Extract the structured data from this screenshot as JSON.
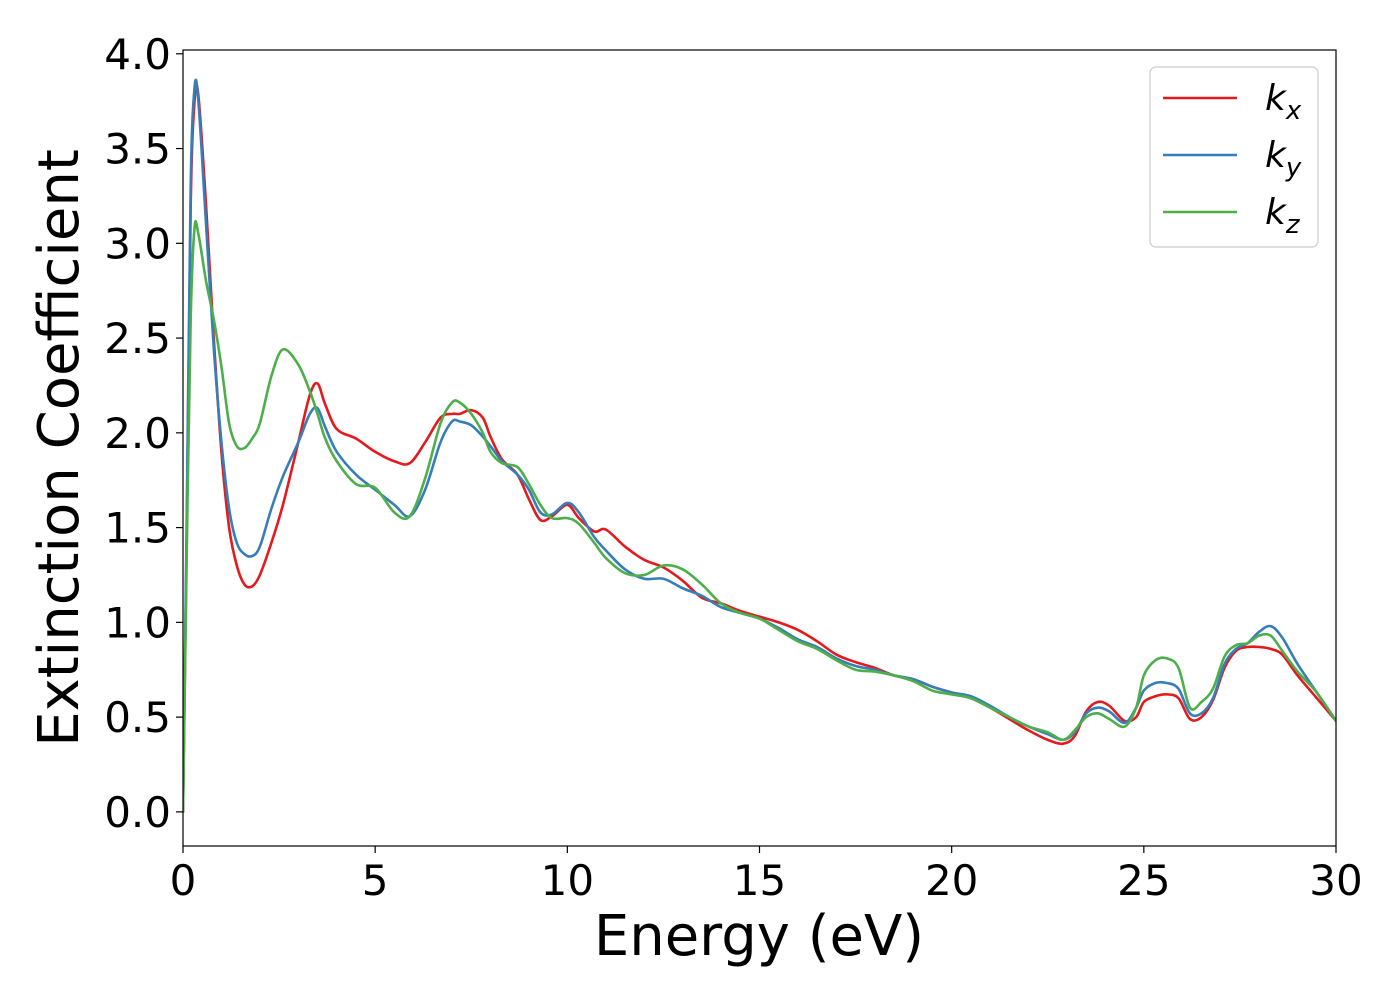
{
  "chart_data": {
    "type": "line",
    "xlabel": "Energy (eV)",
    "ylabel": "Extinction Coefficient",
    "xlim": [
      0,
      30
    ],
    "ylim": [
      -0.18,
      4.02
    ],
    "xticks": [
      0,
      5,
      10,
      15,
      20,
      25,
      30
    ],
    "xtick_labels": [
      "0",
      "5",
      "10",
      "15",
      "20",
      "25",
      "30"
    ],
    "yticks": [
      0.0,
      0.5,
      1.0,
      1.5,
      2.0,
      2.5,
      3.0,
      3.5,
      4.0
    ],
    "ytick_labels": [
      "0.0",
      "0.5",
      "1.0",
      "1.5",
      "2.0",
      "2.5",
      "3.0",
      "3.5",
      "4.0"
    ],
    "grid": false,
    "legend_position": "top-right",
    "series": [
      {
        "name": "k",
        "subscript": "x",
        "color": "#e41a1c",
        "x": [
          0.0,
          0.1,
          0.2,
          0.3,
          0.4,
          0.6,
          0.8,
          1.0,
          1.2,
          1.4,
          1.6,
          1.8,
          2.0,
          2.3,
          2.6,
          3.0,
          3.3,
          3.5,
          3.7,
          4.0,
          4.5,
          5.0,
          5.5,
          5.9,
          6.3,
          6.7,
          7.0,
          7.2,
          7.5,
          7.8,
          8.0,
          8.3,
          8.7,
          9.0,
          9.3,
          9.6,
          10.0,
          10.3,
          10.7,
          11.0,
          11.5,
          12.0,
          12.5,
          13.0,
          13.5,
          14.0,
          14.5,
          15.0,
          15.5,
          16.0,
          16.5,
          17.0,
          17.5,
          18.0,
          18.5,
          19.0,
          19.5,
          20.0,
          20.5,
          21.0,
          21.5,
          22.0,
          22.5,
          22.9,
          23.2,
          23.5,
          23.8,
          24.1,
          24.5,
          24.8,
          25.0,
          25.3,
          25.6,
          25.9,
          26.2,
          26.5,
          26.8,
          27.1,
          27.4,
          27.7,
          28.0,
          28.3,
          28.6,
          29.0,
          29.5,
          30.0
        ],
        "y": [
          0.0,
          1.5,
          3.2,
          3.75,
          3.78,
          3.2,
          2.5,
          1.9,
          1.5,
          1.3,
          1.2,
          1.19,
          1.25,
          1.42,
          1.62,
          1.95,
          2.2,
          2.26,
          2.15,
          2.02,
          1.97,
          1.9,
          1.85,
          1.84,
          1.95,
          2.08,
          2.1,
          2.1,
          2.12,
          2.08,
          1.98,
          1.86,
          1.78,
          1.65,
          1.54,
          1.56,
          1.62,
          1.55,
          1.48,
          1.49,
          1.4,
          1.33,
          1.29,
          1.22,
          1.13,
          1.1,
          1.06,
          1.03,
          1.0,
          0.96,
          0.9,
          0.83,
          0.79,
          0.76,
          0.72,
          0.7,
          0.66,
          0.63,
          0.6,
          0.55,
          0.49,
          0.43,
          0.38,
          0.36,
          0.4,
          0.53,
          0.58,
          0.56,
          0.48,
          0.5,
          0.58,
          0.61,
          0.62,
          0.6,
          0.49,
          0.5,
          0.59,
          0.76,
          0.85,
          0.87,
          0.87,
          0.86,
          0.83,
          0.72,
          0.6,
          0.48
        ]
      },
      {
        "name": "k",
        "subscript": "y",
        "color": "#377eb8",
        "x": [
          0.0,
          0.1,
          0.2,
          0.3,
          0.4,
          0.6,
          0.8,
          1.0,
          1.2,
          1.4,
          1.6,
          1.8,
          2.0,
          2.3,
          2.6,
          3.0,
          3.3,
          3.5,
          3.7,
          4.0,
          4.5,
          5.0,
          5.5,
          5.9,
          6.3,
          6.7,
          7.0,
          7.2,
          7.5,
          7.8,
          8.0,
          8.3,
          8.7,
          9.0,
          9.3,
          9.6,
          10.0,
          10.3,
          10.7,
          11.0,
          11.5,
          12.0,
          12.5,
          13.0,
          13.5,
          14.0,
          14.5,
          15.0,
          15.5,
          16.0,
          16.5,
          17.0,
          17.5,
          18.0,
          18.5,
          19.0,
          19.5,
          20.0,
          20.5,
          21.0,
          21.5,
          22.0,
          22.5,
          22.9,
          23.2,
          23.5,
          23.8,
          24.1,
          24.5,
          24.8,
          25.0,
          25.3,
          25.6,
          25.9,
          26.2,
          26.5,
          26.8,
          27.1,
          27.4,
          27.7,
          28.0,
          28.3,
          28.6,
          29.0,
          29.5,
          30.0
        ],
        "y": [
          0.0,
          1.6,
          3.3,
          3.82,
          3.75,
          3.1,
          2.45,
          1.95,
          1.6,
          1.42,
          1.36,
          1.35,
          1.4,
          1.6,
          1.77,
          1.95,
          2.1,
          2.13,
          2.03,
          1.9,
          1.78,
          1.7,
          1.62,
          1.56,
          1.7,
          1.95,
          2.06,
          2.06,
          2.04,
          1.98,
          1.93,
          1.85,
          1.78,
          1.7,
          1.58,
          1.57,
          1.63,
          1.58,
          1.45,
          1.38,
          1.28,
          1.23,
          1.23,
          1.18,
          1.14,
          1.08,
          1.05,
          1.02,
          0.97,
          0.91,
          0.87,
          0.81,
          0.77,
          0.75,
          0.72,
          0.7,
          0.66,
          0.63,
          0.61,
          0.56,
          0.5,
          0.45,
          0.41,
          0.38,
          0.42,
          0.52,
          0.55,
          0.53,
          0.47,
          0.55,
          0.64,
          0.68,
          0.68,
          0.65,
          0.52,
          0.52,
          0.6,
          0.78,
          0.86,
          0.89,
          0.95,
          0.98,
          0.92,
          0.78,
          0.63,
          0.48
        ]
      },
      {
        "name": "k",
        "subscript": "z",
        "color": "#4daf4a",
        "x": [
          0.0,
          0.1,
          0.2,
          0.3,
          0.4,
          0.6,
          0.8,
          1.0,
          1.2,
          1.4,
          1.6,
          1.8,
          2.0,
          2.3,
          2.6,
          3.0,
          3.3,
          3.5,
          3.7,
          4.0,
          4.5,
          5.0,
          5.5,
          5.9,
          6.3,
          6.7,
          7.0,
          7.2,
          7.5,
          7.8,
          8.0,
          8.3,
          8.7,
          9.0,
          9.3,
          9.6,
          10.0,
          10.3,
          10.7,
          11.0,
          11.5,
          12.0,
          12.5,
          13.0,
          13.5,
          14.0,
          14.5,
          15.0,
          15.5,
          16.0,
          16.5,
          17.0,
          17.5,
          18.0,
          18.5,
          19.0,
          19.5,
          20.0,
          20.5,
          21.0,
          21.5,
          22.0,
          22.5,
          22.9,
          23.2,
          23.5,
          23.8,
          24.1,
          24.5,
          24.8,
          25.0,
          25.3,
          25.6,
          25.9,
          26.2,
          26.5,
          26.8,
          27.1,
          27.4,
          27.7,
          28.0,
          28.3,
          28.6,
          29.0,
          29.5,
          30.0
        ],
        "y": [
          0.0,
          1.4,
          2.6,
          3.08,
          3.05,
          2.8,
          2.6,
          2.35,
          2.05,
          1.93,
          1.92,
          1.97,
          2.05,
          2.3,
          2.44,
          2.36,
          2.22,
          2.1,
          1.97,
          1.85,
          1.73,
          1.71,
          1.58,
          1.56,
          1.76,
          2.05,
          2.16,
          2.16,
          2.1,
          2.0,
          1.9,
          1.84,
          1.82,
          1.73,
          1.62,
          1.55,
          1.55,
          1.52,
          1.42,
          1.34,
          1.26,
          1.25,
          1.3,
          1.28,
          1.2,
          1.1,
          1.05,
          1.02,
          0.96,
          0.9,
          0.86,
          0.8,
          0.75,
          0.74,
          0.72,
          0.69,
          0.64,
          0.62,
          0.6,
          0.55,
          0.5,
          0.45,
          0.42,
          0.38,
          0.43,
          0.5,
          0.52,
          0.49,
          0.45,
          0.55,
          0.72,
          0.8,
          0.81,
          0.76,
          0.55,
          0.58,
          0.65,
          0.82,
          0.88,
          0.89,
          0.93,
          0.93,
          0.85,
          0.74,
          0.63,
          0.48
        ]
      }
    ]
  }
}
